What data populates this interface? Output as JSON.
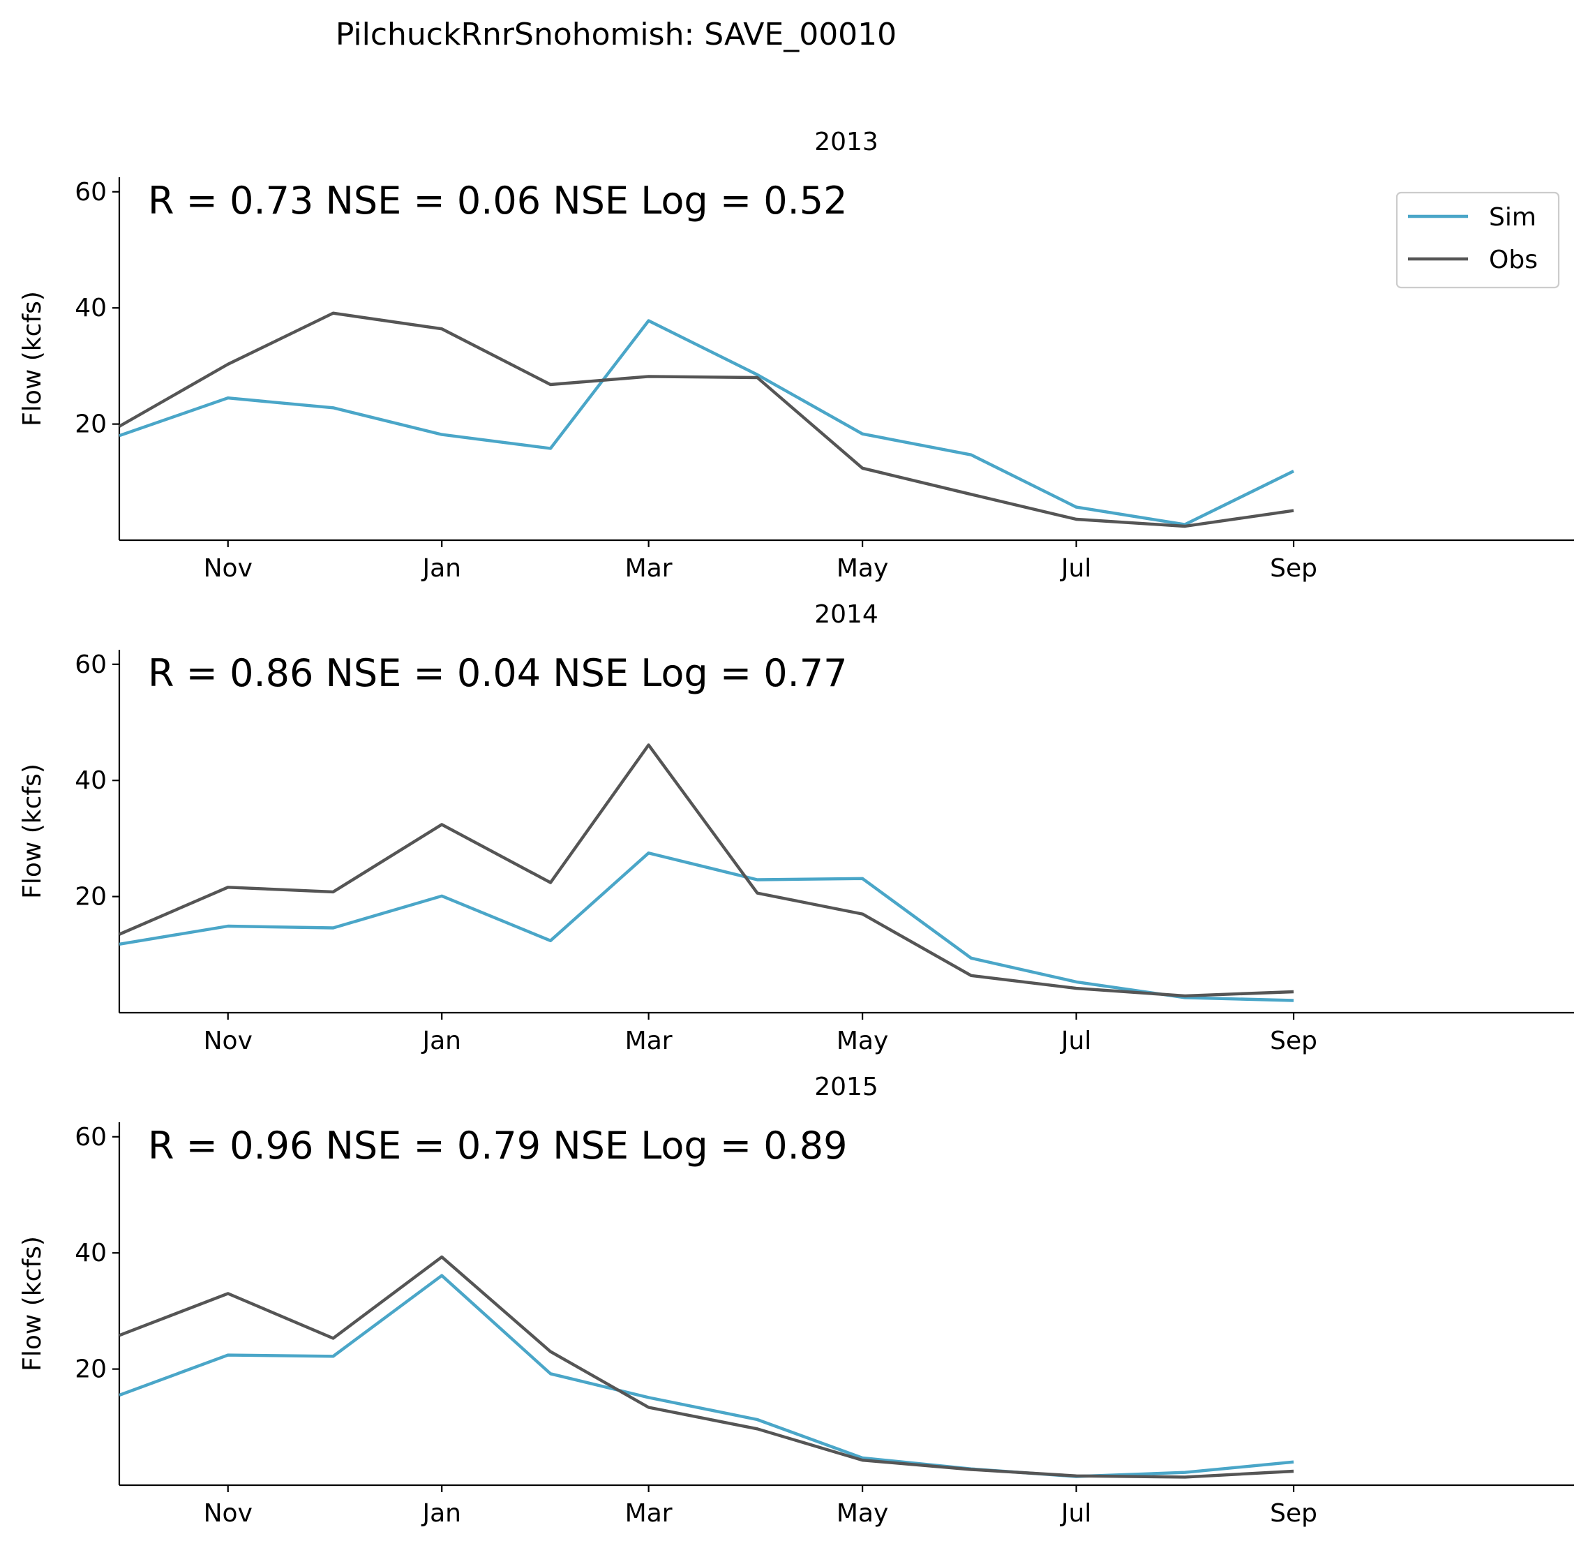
{
  "figure_title": "PilchuckRnrSnohomish: SAVE_00010",
  "colors": {
    "sim": "#4aa6c8",
    "obs": "#555555"
  },
  "legend": {
    "placement": "top-right of first panel",
    "entries": [
      "Sim",
      "Obs"
    ]
  },
  "chart_data": [
    {
      "type": "line",
      "title": "2013",
      "metrics_text": "R = 0.73  NSE = 0.06  NSE Log = 0.52",
      "ylabel": "Flow (kcfs)",
      "xlabel": "",
      "x_tick_labels": [
        "Nov",
        "Jan",
        "Mar",
        "May",
        "Jul",
        "Sep"
      ],
      "y_ticks": [
        20,
        40,
        60
      ],
      "ylim": [
        0,
        62.5
      ],
      "xlim": [
        "2012-10-01",
        "2013-11-20"
      ],
      "grid": false,
      "x": [
        "2012-10-01",
        "2012-11-01",
        "2012-12-01",
        "2013-01-01",
        "2013-02-01",
        "2013-03-01",
        "2013-04-01",
        "2013-05-01",
        "2013-06-01",
        "2013-07-01",
        "2013-08-01",
        "2013-09-01"
      ],
      "series": [
        {
          "name": "Sim",
          "values": [
            18.0,
            24.5,
            22.8,
            18.2,
            15.8,
            37.8,
            28.5,
            18.3,
            14.7,
            5.7,
            2.7,
            11.9
          ]
        },
        {
          "name": "Obs",
          "values": [
            19.6,
            30.3,
            39.1,
            36.4,
            26.8,
            28.2,
            28.0,
            12.4,
            7.9,
            3.6,
            2.4,
            5.1
          ]
        }
      ]
    },
    {
      "type": "line",
      "title": "2014",
      "metrics_text": "R = 0.86  NSE = 0.04  NSE Log = 0.77",
      "ylabel": "Flow (kcfs)",
      "xlabel": "",
      "x_tick_labels": [
        "Nov",
        "Jan",
        "Mar",
        "May",
        "Jul",
        "Sep"
      ],
      "y_ticks": [
        20,
        40,
        60
      ],
      "ylim": [
        0,
        62.5
      ],
      "xlim": [
        "2013-10-01",
        "2014-11-20"
      ],
      "grid": false,
      "x": [
        "2013-10-01",
        "2013-11-01",
        "2013-12-01",
        "2014-01-01",
        "2014-02-01",
        "2014-03-01",
        "2014-04-01",
        "2014-05-01",
        "2014-06-01",
        "2014-07-01",
        "2014-08-01",
        "2014-09-01"
      ],
      "series": [
        {
          "name": "Sim",
          "values": [
            11.8,
            14.9,
            14.6,
            20.1,
            12.4,
            27.5,
            22.9,
            23.1,
            9.4,
            5.3,
            2.6,
            2.1
          ]
        },
        {
          "name": "Obs",
          "values": [
            13.5,
            21.6,
            20.8,
            32.4,
            22.4,
            46.1,
            20.6,
            17.0,
            6.4,
            4.2,
            2.9,
            3.6
          ]
        }
      ]
    },
    {
      "type": "line",
      "title": "2015",
      "metrics_text": "R = 0.96  NSE = 0.79  NSE Log = 0.89",
      "ylabel": "Flow (kcfs)",
      "xlabel": "",
      "x_tick_labels": [
        "Nov",
        "Jan",
        "Mar",
        "May",
        "Jul",
        "Sep"
      ],
      "y_ticks": [
        20,
        40,
        60
      ],
      "ylim": [
        0,
        62.5
      ],
      "xlim": [
        "2014-10-01",
        "2015-11-20"
      ],
      "grid": false,
      "x": [
        "2014-10-01",
        "2014-11-01",
        "2014-12-01",
        "2015-01-01",
        "2015-02-01",
        "2015-03-01",
        "2015-04-01",
        "2015-05-01",
        "2015-06-01",
        "2015-07-01",
        "2015-08-01",
        "2015-09-01"
      ],
      "series": [
        {
          "name": "Sim",
          "values": [
            15.5,
            22.4,
            22.2,
            36.1,
            19.2,
            15.1,
            11.3,
            4.7,
            2.8,
            1.5,
            2.2,
            4.0
          ]
        },
        {
          "name": "Obs",
          "values": [
            25.8,
            33.0,
            25.3,
            39.3,
            23.0,
            13.4,
            9.7,
            4.3,
            2.7,
            1.6,
            1.4,
            2.4
          ]
        }
      ]
    }
  ]
}
